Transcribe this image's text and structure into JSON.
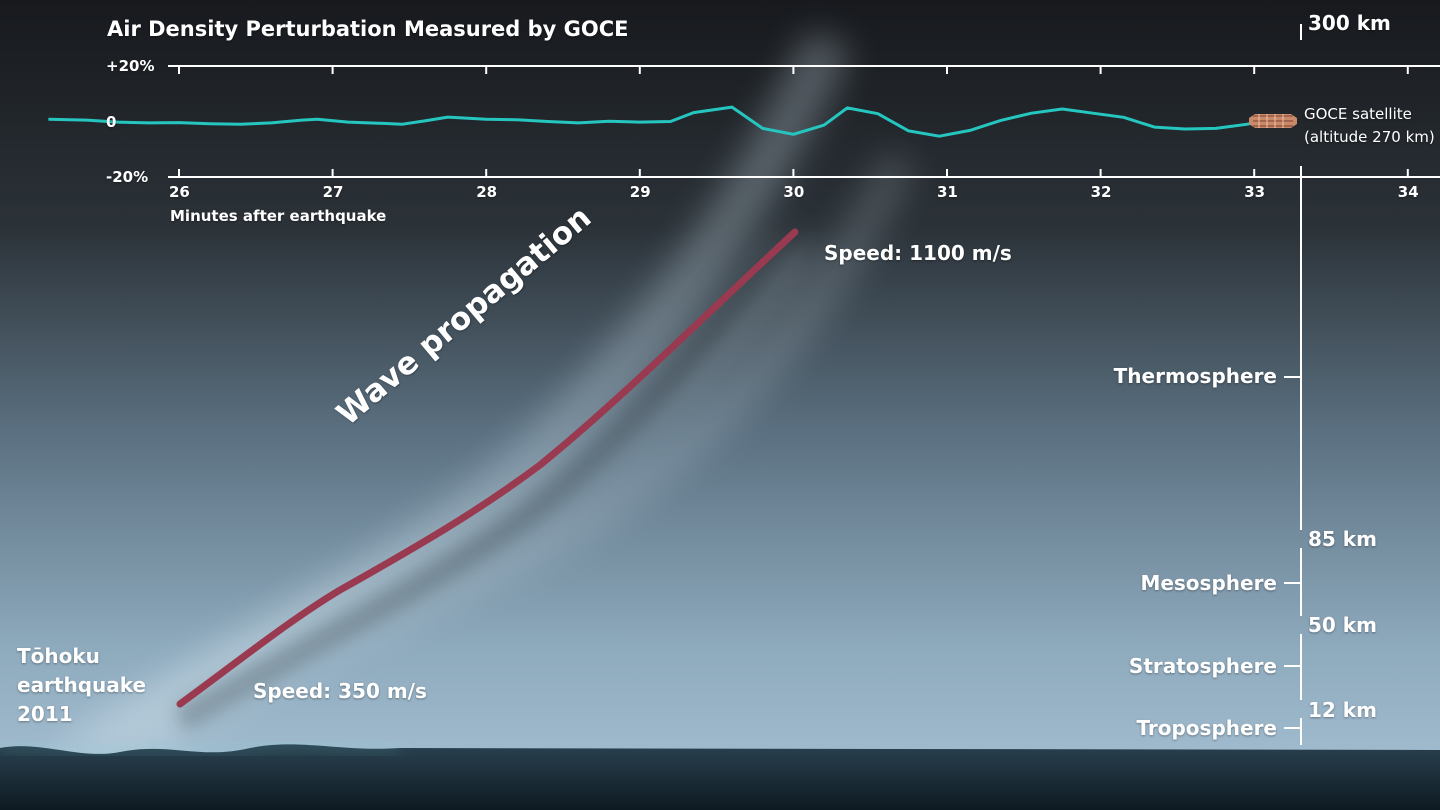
{
  "chart_data": {
    "type": "line",
    "title": "Air Density Perturbation Measured by GOCE",
    "xlabel": "Minutes after earthquake",
    "ylabel": "",
    "xlim": [
      25.2,
      34.2
    ],
    "ylim": [
      -20,
      20
    ],
    "x_ticks": [
      "26",
      "27",
      "28",
      "29",
      "30",
      "31",
      "32",
      "33",
      "34"
    ],
    "y_ticks": [
      "+20%",
      "0",
      "-20%"
    ],
    "color": "#26c6c0",
    "x": [
      25.15,
      25.4,
      25.6,
      25.8,
      26.0,
      26.2,
      26.4,
      26.6,
      26.8,
      26.9,
      27.1,
      27.3,
      27.45,
      27.6,
      27.75,
      28.0,
      28.2,
      28.4,
      28.6,
      28.8,
      29.0,
      29.2,
      29.35,
      29.6,
      29.8,
      30.0,
      30.2,
      30.35,
      30.55,
      30.75,
      30.95,
      31.15,
      31.35,
      31.55,
      31.75,
      31.95,
      32.15,
      32.35,
      32.55,
      32.75,
      32.95,
      33.0
    ],
    "y": [
      0.8,
      0.5,
      -0.2,
      -0.5,
      -0.4,
      -0.8,
      -1.0,
      -0.5,
      0.5,
      0.8,
      -0.2,
      -0.6,
      -1.0,
      0.2,
      1.6,
      0.8,
      0.6,
      0.0,
      -0.5,
      0.1,
      -0.2,
      0.0,
      3.2,
      5.2,
      -2.5,
      -4.6,
      -1.3,
      4.9,
      2.8,
      -3.4,
      -5.3,
      -3.2,
      0.4,
      3.0,
      4.5,
      3.0,
      1.5,
      -2.0,
      -2.7,
      -2.5,
      -1.0,
      -0.5
    ]
  },
  "annotations": {
    "speed_top": "Speed: 1100 m/s",
    "speed_bottom": "Speed: 350 m/s",
    "wave_label": "Wave propagation",
    "quake_line1": "Tōhoku",
    "quake_line2": "earthquake",
    "quake_line3": "2011",
    "satellite_line1": "GOCE satellite",
    "satellite_line2": "(altitude 270 km)"
  },
  "altitude_scale": {
    "labels": [
      "300 km",
      "85 km",
      "50 km",
      "12 km"
    ],
    "layers": [
      "Thermosphere",
      "Mesosphere",
      "Stratosphere",
      "Troposphere"
    ]
  },
  "colors": {
    "sky_top": "#1b1e22",
    "sky_bottom": "#a9c3d6",
    "ground": "#1a2b35",
    "wave_path": "#9a3a50",
    "series": "#26c6c0",
    "text": "#ffffff"
  },
  "icons": {
    "satellite": "goce-satellite-icon"
  }
}
